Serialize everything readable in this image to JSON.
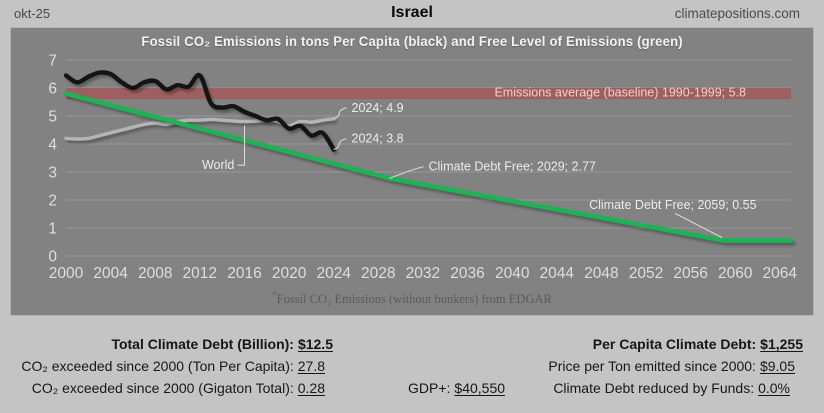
{
  "header": {
    "date": "okt-25",
    "country": "Israel",
    "site": "climatepositions.com"
  },
  "chart_data": {
    "type": "line",
    "title": "Fossil CO₂ Emissions in tons Per Capita (black) and Free Level of Emissions (green)",
    "footnote_marker": "*",
    "footnote": "Fossil CO₂ Emissions (without bunkers) from EDGAR",
    "x_range": [
      2000,
      2065
    ],
    "y_range": [
      0,
      7
    ],
    "x_ticks": [
      2000,
      2004,
      2008,
      2012,
      2016,
      2020,
      2024,
      2028,
      2032,
      2036,
      2040,
      2044,
      2048,
      2052,
      2056,
      2060,
      2064
    ],
    "y_ticks": [
      0,
      1,
      2,
      3,
      4,
      5,
      6,
      7
    ],
    "grid": true,
    "colors": {
      "plot_bg": "#828282",
      "gridline": "#989898",
      "axis_text": "#dedede",
      "annotation_text": "#ececec",
      "leader": "#d8d8d8"
    },
    "baseline_band": {
      "label": "Emissions average (baseline) 1990-1999; 5.8",
      "value": 5.8,
      "band": [
        5.6,
        6.0
      ],
      "color": "#9e5f5f",
      "label_color": "#f2d0c5"
    },
    "series": [
      {
        "name": "world-emissions",
        "legend": "World",
        "color": "#b5b5b5",
        "width": 3.4,
        "smooth": true,
        "x": [
          2000,
          2001,
          2002,
          2003,
          2004,
          2005,
          2006,
          2007,
          2008,
          2009,
          2010,
          2011,
          2012,
          2013,
          2014,
          2015,
          2016,
          2017,
          2018,
          2019,
          2020,
          2021,
          2022,
          2023,
          2024
        ],
        "values": [
          4.2,
          4.18,
          4.2,
          4.3,
          4.4,
          4.5,
          4.6,
          4.7,
          4.75,
          4.7,
          4.8,
          4.85,
          4.85,
          4.88,
          4.85,
          4.82,
          4.8,
          4.82,
          4.85,
          4.8,
          4.65,
          4.8,
          4.78,
          4.85,
          4.9
        ]
      },
      {
        "name": "free-level-of-emissions",
        "legend": "Free Level of Emissions (green)",
        "color": "#1db254",
        "width": 4.6,
        "smooth": false,
        "x": [
          2000,
          2029,
          2059,
          2065
        ],
        "values": [
          5.8,
          2.77,
          0.55,
          0.55
        ]
      },
      {
        "name": "israel-emissions-per-capita",
        "legend": "Emissions in tons Per Capita (black)",
        "color": "#141414",
        "width": 4.4,
        "smooth": true,
        "x": [
          2000,
          2001,
          2002,
          2003,
          2004,
          2005,
          2006,
          2007,
          2008,
          2009,
          2010,
          2011,
          2012,
          2013,
          2014,
          2015,
          2016,
          2017,
          2018,
          2019,
          2020,
          2021,
          2022,
          2023,
          2024
        ],
        "values": [
          6.45,
          6.2,
          6.4,
          6.55,
          6.5,
          6.2,
          6.0,
          6.2,
          6.25,
          5.95,
          6.1,
          6.05,
          6.45,
          5.45,
          5.3,
          5.35,
          5.15,
          5.0,
          4.85,
          4.9,
          4.55,
          4.65,
          4.3,
          4.4,
          3.8
        ]
      }
    ],
    "annotations": [
      {
        "text": "2024; 4.9",
        "target": [
          2024,
          4.9
        ],
        "label_at": [
          2025.6,
          5.15
        ],
        "align": "start",
        "leader": "curve"
      },
      {
        "text": "2024; 3.8",
        "target": [
          2024,
          3.8
        ],
        "label_at": [
          2025.6,
          4.05
        ],
        "align": "start",
        "leader": "curve"
      },
      {
        "text": "World",
        "target": [
          2016,
          4.8
        ],
        "label_at": [
          2015.1,
          3.1
        ],
        "align": "end",
        "leader": "vertical"
      },
      {
        "text": "Climate Debt Free; 2029; 2.77",
        "target": [
          2029,
          2.77
        ],
        "label_at": [
          2032.5,
          3.05
        ],
        "align": "start",
        "leader": "curve"
      },
      {
        "text": "Climate Debt Free; 2059; 0.55",
        "target": [
          2059,
          0.55
        ],
        "label_at": [
          2046.9,
          1.68
        ],
        "align": "start",
        "leader": "line",
        "leader_from": [
          2054.6,
          1.52
        ]
      }
    ]
  },
  "stats": {
    "left": [
      {
        "label": "Total Climate Debt (Billion):",
        "value": "$12.5"
      },
      {
        "label": "CO₂ exceeded since 2000 (Ton Per Capita):",
        "value": "27.8"
      },
      {
        "label": "CO₂ exceeded since 2000 (Gigaton Total):",
        "value": "0.28"
      }
    ],
    "gdp": {
      "label": "GDP+:",
      "value": "$40,550"
    },
    "right": [
      {
        "label": "Per Capita Climate Debt:",
        "value": "$1,255"
      },
      {
        "label": "Price per Ton emitted since 2000:",
        "value": "$9.05"
      },
      {
        "label": "Climate Debt reduced by Funds:",
        "value": "0.0%"
      }
    ]
  }
}
